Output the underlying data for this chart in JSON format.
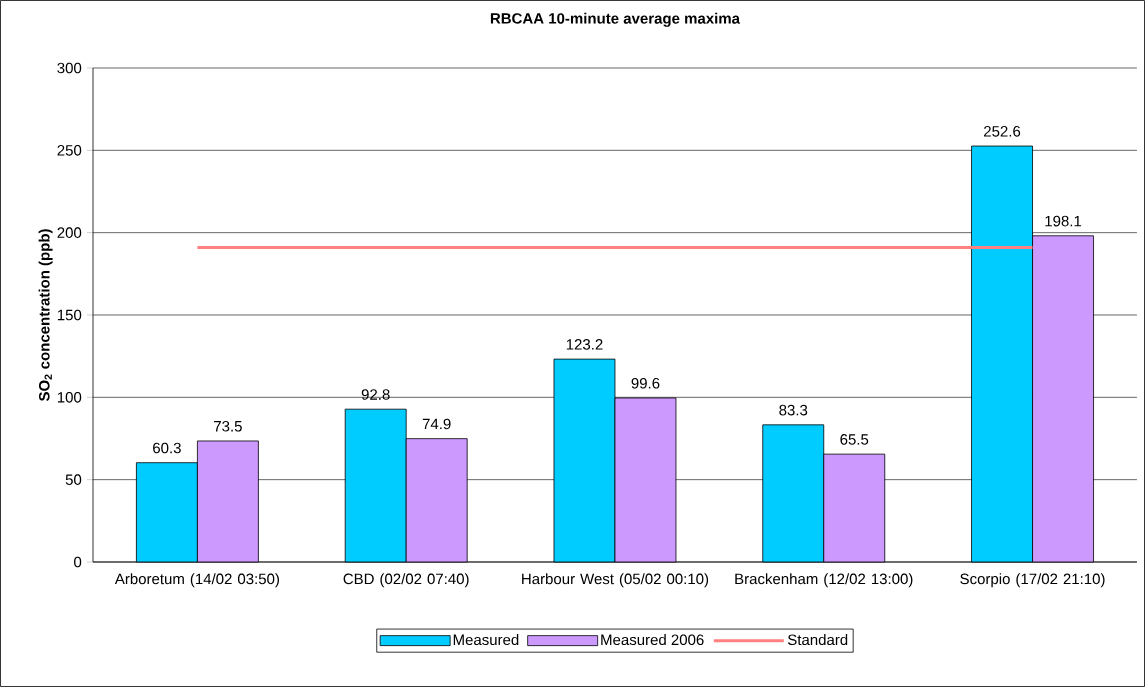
{
  "chart_data": {
    "type": "bar",
    "title": "RBCAA 10-minute average maxima",
    "ylabel": "SO$_{2}$ concentration (ppb)",
    "categories": [
      "Arboretum (14/02 03:50)",
      "CBD (02/02 07:40)",
      "Harbour West (05/02 00:10)",
      "Brackenham (12/02 13:00)",
      "Scorpio (17/02 21:10)"
    ],
    "series": [
      {
        "name": "Measured",
        "color": "#00ccff",
        "values": [
          60.3,
          92.8,
          123.2,
          83.3,
          252.6
        ],
        "value_labels": [
          "60.3",
          "92.8",
          "123.2",
          "83.3",
          "252.6"
        ]
      },
      {
        "name": "Measured 2006",
        "color": "#cc99ff",
        "values": [
          73.5,
          74.9,
          99.6,
          65.5,
          198.1
        ],
        "value_labels": [
          "73.5",
          "74.9",
          "99.6",
          "65.5",
          "198.1"
        ]
      },
      {
        "name": "Standard",
        "type": "line",
        "color": "#ff8080",
        "values": [
          191,
          191,
          191,
          191,
          191
        ]
      }
    ],
    "ylim": [
      0,
      300
    ],
    "yticks": [
      0,
      50,
      100,
      150,
      200,
      250,
      300
    ],
    "grid": "y",
    "legend": "bottom"
  }
}
